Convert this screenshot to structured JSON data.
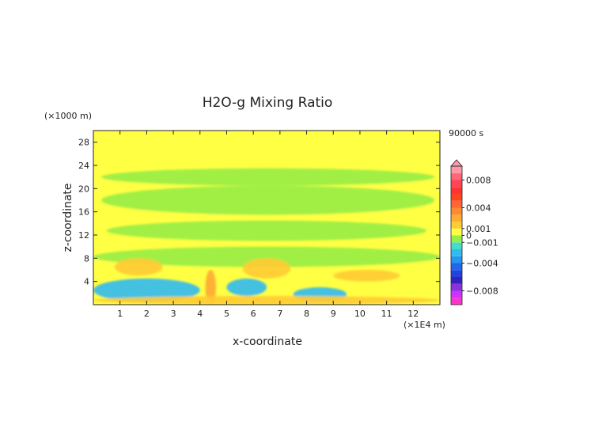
{
  "chart_data": {
    "type": "heatmap",
    "title": "H2O-g Mixing Ratio",
    "xlabel": "x-coordinate",
    "ylabel": "z-coordinate",
    "x_unit": "(×1E4 m)",
    "y_unit": "(×1000 m)",
    "time_label": "90000 s",
    "xlim": [
      0,
      13
    ],
    "ylim": [
      0,
      30
    ],
    "x_ticks": [
      1,
      2,
      3,
      4,
      5,
      6,
      7,
      8,
      9,
      10,
      11,
      12
    ],
    "y_ticks": [
      4,
      8,
      12,
      16,
      20,
      24,
      28
    ],
    "colorbar": {
      "range": [
        -0.01,
        0.01
      ],
      "tick_labels": [
        {
          "value": 0.008,
          "label": "0.008"
        },
        {
          "value": 0.004,
          "label": "0.004"
        },
        {
          "value": 0.001,
          "label": "0.001"
        },
        {
          "value": 0,
          "label": "0"
        },
        {
          "value": -0.001,
          "label": "−0.001"
        },
        {
          "value": -0.004,
          "label": "−0.004"
        },
        {
          "value": -0.008,
          "label": "−0.008"
        }
      ],
      "colors": [
        {
          "value": -0.0095,
          "color": "#ff33cc"
        },
        {
          "value": -0.0085,
          "color": "#cc33ff"
        },
        {
          "value": -0.0075,
          "color": "#8833dd"
        },
        {
          "value": -0.0065,
          "color": "#3322bb"
        },
        {
          "value": -0.0055,
          "color": "#2244dd"
        },
        {
          "value": -0.0045,
          "color": "#2266ee"
        },
        {
          "value": -0.0035,
          "color": "#2299ee"
        },
        {
          "value": -0.0025,
          "color": "#33bbee"
        },
        {
          "value": -0.0015,
          "color": "#44ddcc"
        },
        {
          "value": -0.0005,
          "color": "#99ee44"
        },
        {
          "value": 0.0005,
          "color": "#ffff44"
        },
        {
          "value": 0.0015,
          "color": "#ffcc33"
        },
        {
          "value": 0.0025,
          "color": "#ffaa33"
        },
        {
          "value": 0.0035,
          "color": "#ff8833"
        },
        {
          "value": 0.0045,
          "color": "#ff6633"
        },
        {
          "value": 0.0055,
          "color": "#ff4422"
        },
        {
          "value": 0.0065,
          "color": "#ff3333"
        },
        {
          "value": 0.0075,
          "color": "#ff4455"
        },
        {
          "value": 0.0085,
          "color": "#ff6677"
        },
        {
          "value": 0.0095,
          "color": "#ff99aa"
        }
      ]
    },
    "regions": [
      {
        "name": "background",
        "value": 0.0005
      },
      {
        "name": "green-band-upper",
        "value": -0.0005,
        "x": [
          0.3,
          12.8
        ],
        "z": [
          20.5,
          23.5
        ]
      },
      {
        "name": "green-band-middle",
        "value": -0.0005,
        "x": [
          0.3,
          12.8
        ],
        "z": [
          15.5,
          20.5
        ]
      },
      {
        "name": "green-band-lower",
        "value": -0.0005,
        "x": [
          0.5,
          12.5
        ],
        "z": [
          11.0,
          14.5
        ]
      },
      {
        "name": "green-band-low",
        "value": -0.0005,
        "x": [
          0.0,
          13.0
        ],
        "z": [
          6.5,
          10.0
        ]
      },
      {
        "name": "orange-patch-left",
        "value": 0.002,
        "x": [
          0.8,
          2.6
        ],
        "z": [
          5.0,
          8.0
        ]
      },
      {
        "name": "orange-patch-center",
        "value": 0.002,
        "x": [
          5.6,
          7.4
        ],
        "z": [
          4.5,
          8.0
        ]
      },
      {
        "name": "orange-patch-right",
        "value": 0.002,
        "x": [
          9.0,
          11.5
        ],
        "z": [
          4.0,
          6.0
        ]
      },
      {
        "name": "blue-lower-left",
        "value": -0.0025,
        "x": [
          0.0,
          4.0
        ],
        "z": [
          0.5,
          4.5
        ]
      },
      {
        "name": "blue-lower-center",
        "value": -0.0025,
        "x": [
          5.0,
          6.5
        ],
        "z": [
          1.5,
          4.5
        ]
      },
      {
        "name": "blue-lower-right",
        "value": -0.0025,
        "x": [
          7.5,
          9.5
        ],
        "z": [
          0.5,
          3.0
        ]
      },
      {
        "name": "orange-plume",
        "value": 0.003,
        "x": [
          4.2,
          4.6
        ],
        "z": [
          0.0,
          6.0
        ]
      },
      {
        "name": "surface-orange",
        "value": 0.002,
        "x": [
          0.0,
          13.0
        ],
        "z": [
          0.0,
          1.5
        ]
      }
    ]
  }
}
